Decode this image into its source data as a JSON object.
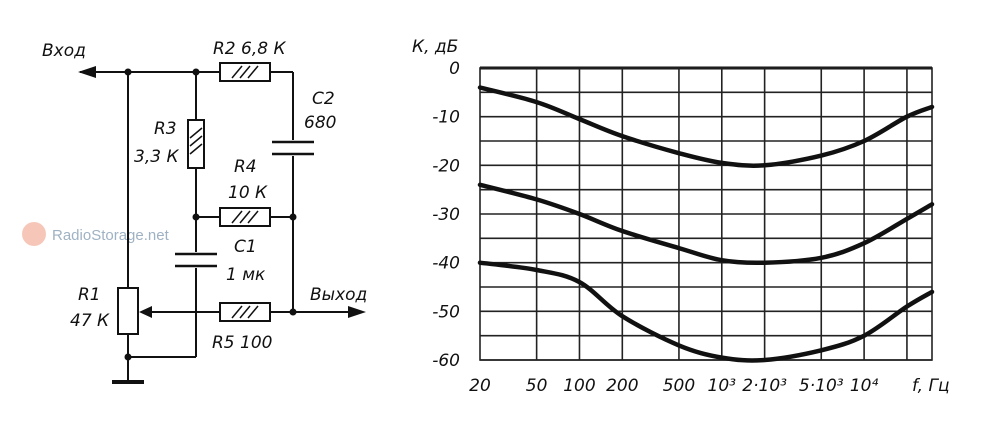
{
  "watermark": {
    "text": "RadioStorage.net"
  },
  "circuit": {
    "input_label": "Вход",
    "output_label": "Выход",
    "r1_name": "R1",
    "r1_value": "47 К",
    "r2": "R2 6,8 К",
    "r3_name": "R3",
    "r3_value": "3,3 К",
    "r4_name": "R4",
    "r4_value": "10 К",
    "r5": "R5 100",
    "c1_name": "C1",
    "c1_value": "1 мк",
    "c2_name": "C2",
    "c2_value": "680"
  },
  "chart_data": {
    "type": "line",
    "ylabel": "К, дБ",
    "xlabel": "f, Гц",
    "xscale": "log",
    "xlim": [
      20,
      30000
    ],
    "ylim": [
      -60,
      0
    ],
    "grid": true,
    "y_ticks": [
      "0",
      "-10",
      "-20",
      "-30",
      "-40",
      "-50",
      "-60"
    ],
    "y_tick_values": [
      0,
      -10,
      -20,
      -30,
      -40,
      -50,
      -60
    ],
    "x_ticks": [
      {
        "label": "20",
        "value": 20
      },
      {
        "label": "50",
        "value": 50
      },
      {
        "label": "100",
        "value": 100
      },
      {
        "label": "200",
        "value": 200
      },
      {
        "label": "500",
        "value": 500
      },
      {
        "label": "10³",
        "value": 1000
      },
      {
        "label": "2·10³",
        "value": 2000
      },
      {
        "label": "5·10³",
        "value": 5000
      },
      {
        "label": "10⁴",
        "value": 10000
      }
    ],
    "series": [
      {
        "x": [
          20,
          50,
          100,
          200,
          500,
          1000,
          2000,
          5000,
          10000,
          20000,
          30000
        ],
        "y": [
          -4,
          -7,
          -10.5,
          -14,
          -17.5,
          -19.5,
          -20,
          -18,
          -15,
          -10,
          -8
        ]
      },
      {
        "x": [
          20,
          50,
          100,
          200,
          500,
          1000,
          2000,
          5000,
          10000,
          20000,
          30000
        ],
        "y": [
          -24,
          -27,
          -30,
          -33.5,
          -37,
          -39.5,
          -40,
          -39,
          -36,
          -31,
          -28
        ]
      },
      {
        "x": [
          20,
          50,
          100,
          200,
          500,
          1000,
          2000,
          5000,
          10000,
          20000,
          30000
        ],
        "y": [
          -40,
          -41.5,
          -44,
          -51,
          -57,
          -59.5,
          -60,
          -58,
          -55,
          -49,
          -46
        ]
      }
    ]
  }
}
